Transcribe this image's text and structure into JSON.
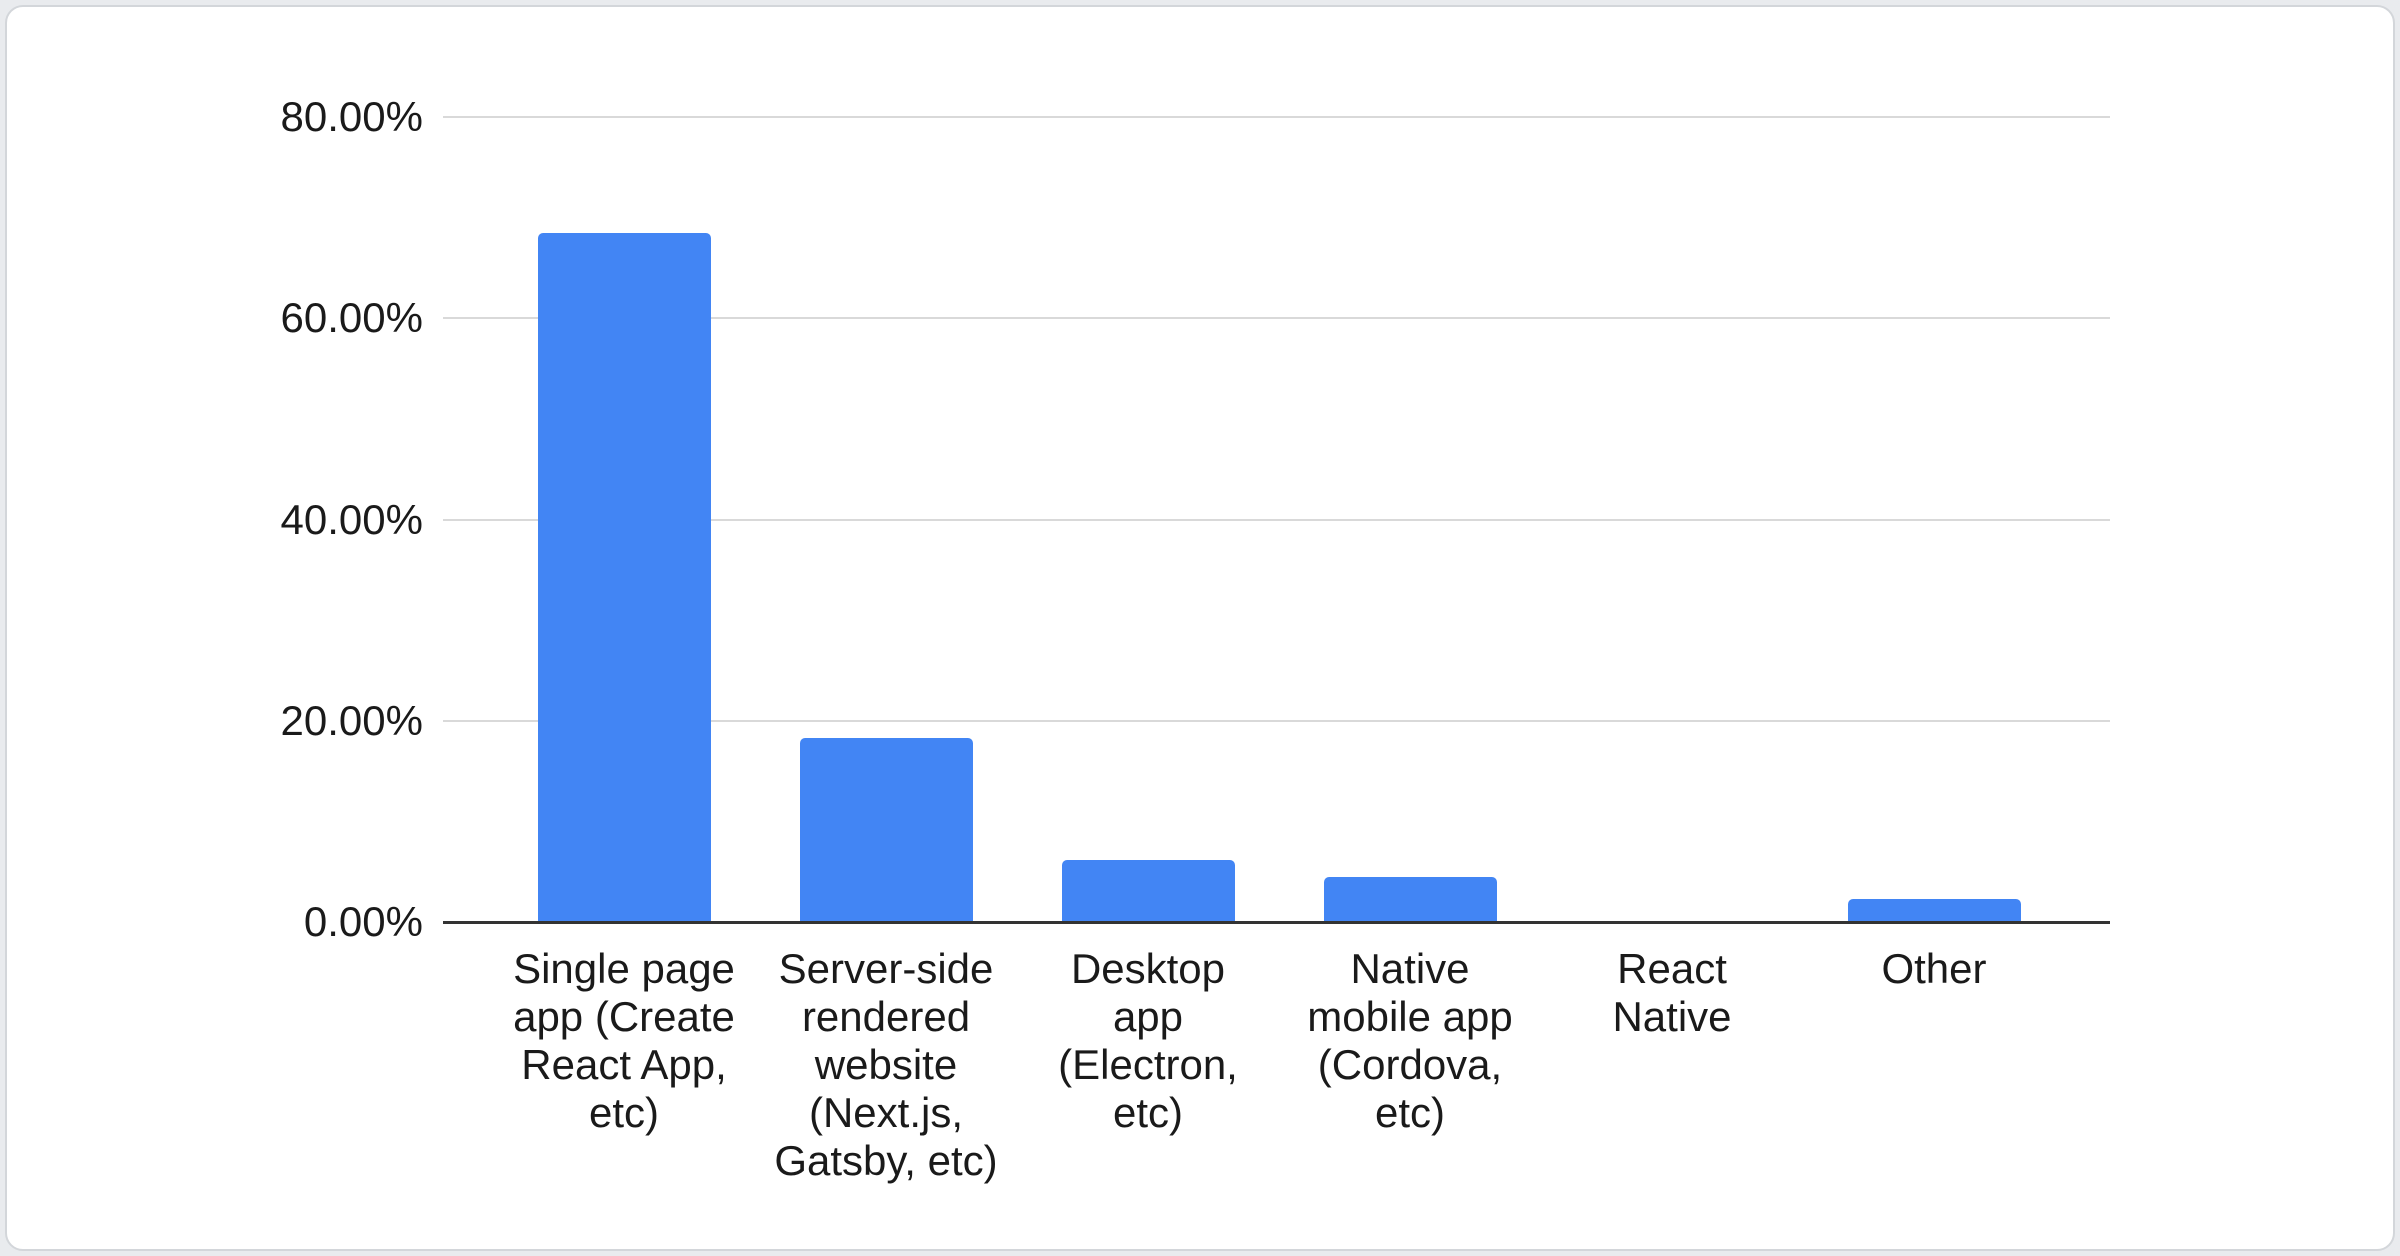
{
  "colors": {
    "bar": "#4285f4",
    "gridline": "#d9d9d9",
    "axis_line": "#333333",
    "text": "#1a1a1a",
    "card_background": "#ffffff",
    "card_border": "#d3d6da",
    "page_background": "#e9ebee"
  },
  "chart_data": {
    "type": "bar",
    "title": "",
    "legend": "none",
    "grid": true,
    "ylabel": "",
    "xlabel": "",
    "ylim": [
      0,
      80
    ],
    "y_tick_step": 20,
    "y_ticks": [
      "0.00%",
      "20.00%",
      "40.00%",
      "60.00%",
      "80.00%"
    ],
    "categories": [
      {
        "name": "Single page app (Create React App, etc)",
        "lines": [
          "Single page",
          "app (Create",
          "React App,",
          "etc)"
        ]
      },
      {
        "name": "Server-side rendered website (Next.js, Gatsby, etc)",
        "lines": [
          "Server-side",
          "rendered",
          "website",
          "(Next.js,",
          "Gatsby, etc)"
        ]
      },
      {
        "name": "Desktop app (Electron, etc)",
        "lines": [
          "Desktop",
          "app",
          "(Electron,",
          "etc)"
        ]
      },
      {
        "name": "Native mobile app (Cordova, etc)",
        "lines": [
          "Native",
          "mobile app",
          "(Cordova,",
          "etc)"
        ]
      },
      {
        "name": "React Native",
        "lines": [
          "React",
          "Native"
        ]
      },
      {
        "name": "Other",
        "lines": [
          "Other"
        ]
      }
    ],
    "values": [
      68.5,
      18.3,
      6.2,
      4.5,
      0,
      2.3
    ],
    "value_unit": "%"
  }
}
